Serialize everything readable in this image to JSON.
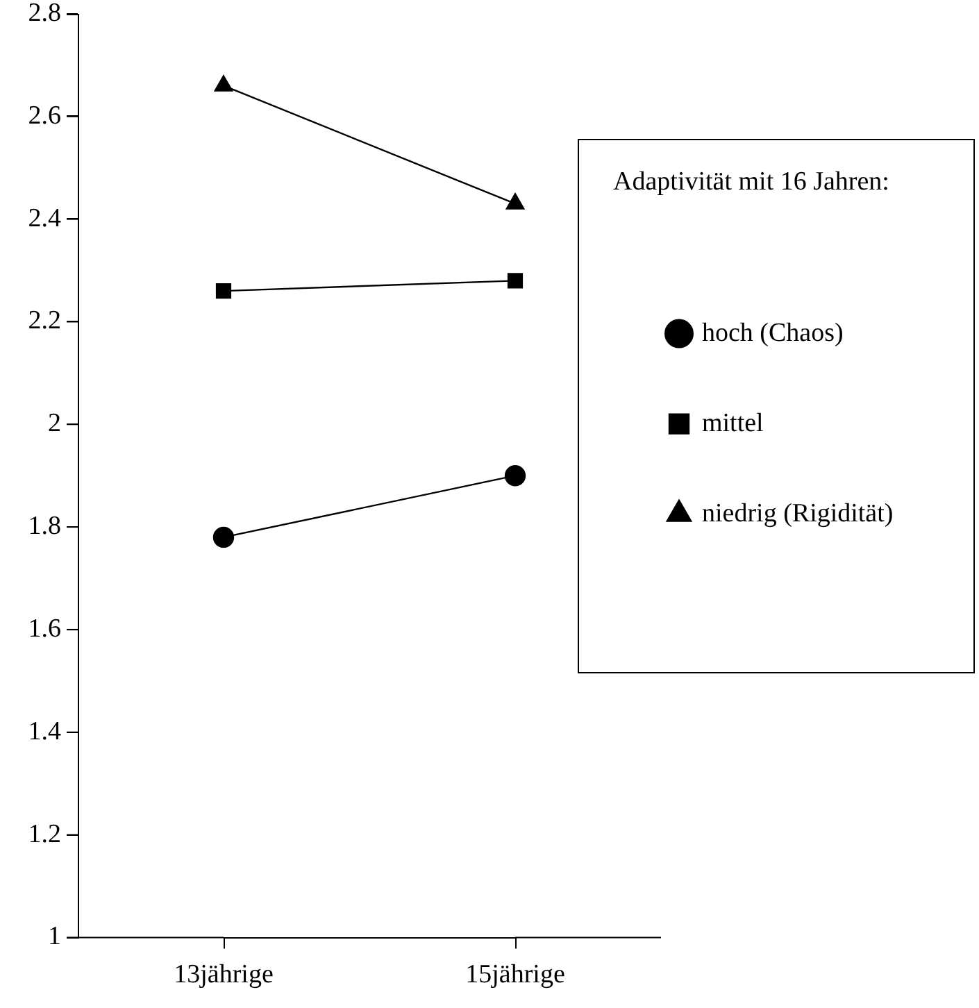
{
  "chart_data": {
    "type": "line",
    "categories": [
      "13jährige",
      "15jährige"
    ],
    "series": [
      {
        "name": "hoch (Chaos)",
        "color": "#000000",
        "marker": "circle",
        "values": [
          1.78,
          1.9
        ]
      },
      {
        "name": "mittel",
        "color": "#000000",
        "marker": "square",
        "values": [
          2.26,
          2.28
        ]
      },
      {
        "name": "niedrig (Rigidität)",
        "color": "#000000",
        "marker": "triangle",
        "values": [
          2.66,
          2.43
        ]
      }
    ],
    "legend_title": "Adaptivität mit 16 Jahren:",
    "legend": "right",
    "grid": false,
    "ylim": [
      1,
      2.8
    ],
    "yticks": [
      1,
      1.2,
      1.4,
      1.6,
      1.8,
      2,
      2.2,
      2.4,
      2.6,
      2.8
    ]
  }
}
